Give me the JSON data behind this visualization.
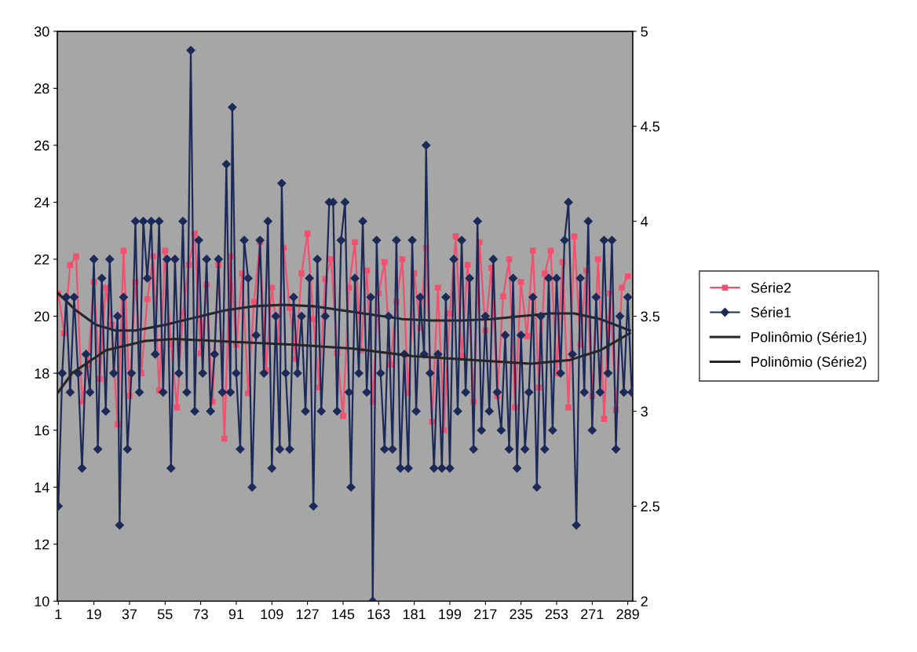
{
  "chart_data": {
    "type": "line",
    "xlim": [
      0.5,
      291.5
    ],
    "xticks": [
      1,
      19,
      37,
      55,
      73,
      91,
      109,
      127,
      145,
      163,
      181,
      199,
      217,
      235,
      253,
      271,
      289
    ],
    "ylim": [
      10,
      30
    ],
    "yticks": [
      10,
      12,
      14,
      16,
      18,
      20,
      22,
      24,
      26,
      28,
      30
    ],
    "y2lim": [
      2,
      5
    ],
    "y2ticks": [
      2,
      2.5,
      3,
      3.5,
      4,
      4.5,
      5
    ],
    "legend": "right",
    "series": [
      {
        "name": "Série2",
        "color": "#f2506e",
        "marker": "square",
        "x": [
          1,
          4,
          7,
          10,
          13,
          16,
          19,
          22,
          25,
          28,
          31,
          34,
          37,
          40,
          43,
          46,
          49,
          52,
          55,
          58,
          61,
          64,
          67,
          70,
          73,
          76,
          79,
          82,
          85,
          88,
          91,
          94,
          97,
          100,
          103,
          106,
          109,
          112,
          115,
          118,
          121,
          124,
          127,
          130,
          133,
          136,
          139,
          142,
          145,
          148,
          151,
          154,
          157,
          160,
          163,
          166,
          169,
          172,
          175,
          178,
          181,
          184,
          187,
          190,
          193,
          196,
          199,
          202,
          205,
          208,
          211,
          214,
          217,
          220,
          223,
          226,
          229,
          232,
          235,
          238,
          241,
          244,
          247,
          250,
          253,
          256,
          259,
          262,
          265,
          268,
          271,
          274,
          277,
          280,
          283,
          286,
          289
        ],
        "values": [
          20.8,
          19.4,
          21.8,
          22.1,
          17.0,
          18.3,
          21.2,
          17.8,
          21.0,
          19.7,
          16.2,
          22.3,
          17.2,
          21.2,
          18.0,
          20.6,
          22.1,
          17.4,
          22.3,
          19.0,
          16.8,
          20.1,
          21.8,
          22.9,
          18.7,
          21.1,
          17.0,
          21.8,
          15.7,
          22.1,
          19.0,
          21.5,
          17.3,
          20.5,
          22.6,
          18.1,
          21.0,
          19.2,
          22.4,
          20.3,
          18.5,
          21.5,
          22.9,
          19.9,
          17.5,
          21.3,
          22.0,
          18.7,
          16.5,
          21.0,
          22.6,
          18.8,
          21.6,
          17.0,
          20.8,
          21.9,
          18.3,
          20.5,
          22.0,
          17.3,
          21.5,
          19.6,
          22.4,
          16.3,
          21.0,
          16.0,
          20.1,
          22.8,
          18.6,
          21.8,
          17.0,
          22.6,
          19.5,
          21.7,
          17.2,
          20.7,
          22.0,
          16.8,
          21.2,
          19.3,
          22.3,
          17.5,
          21.5,
          22.3,
          18.0,
          21.9,
          16.8,
          22.8,
          19.0,
          21.6,
          17.2,
          22.0,
          16.4,
          20.8,
          16.7,
          21.0,
          21.4
        ]
      },
      {
        "name": "Série1",
        "color": "#1c2a5a",
        "marker": "diamond",
        "axis": "y2",
        "x": [
          1,
          3,
          5,
          7,
          9,
          11,
          13,
          15,
          17,
          19,
          21,
          23,
          25,
          27,
          29,
          31,
          32,
          34,
          36,
          38,
          40,
          42,
          44,
          46,
          48,
          50,
          52,
          54,
          56,
          58,
          60,
          62,
          64,
          66,
          68,
          70,
          72,
          74,
          76,
          78,
          80,
          82,
          84,
          86,
          88,
          89,
          91,
          93,
          95,
          97,
          99,
          101,
          103,
          105,
          107,
          109,
          111,
          113,
          114,
          116,
          118,
          120,
          122,
          124,
          126,
          128,
          130,
          132,
          134,
          136,
          138,
          140,
          142,
          144,
          146,
          148,
          149,
          151,
          153,
          155,
          157,
          159,
          160,
          162,
          164,
          166,
          168,
          170,
          172,
          174,
          176,
          178,
          180,
          182,
          184,
          186,
          187,
          189,
          191,
          193,
          195,
          197,
          199,
          201,
          203,
          205,
          207,
          209,
          211,
          213,
          215,
          217,
          219,
          221,
          223,
          225,
          227,
          229,
          231,
          233,
          235,
          237,
          239,
          241,
          243,
          245,
          247,
          249,
          251,
          253,
          255,
          257,
          259,
          261,
          263,
          265,
          267,
          269,
          271,
          273,
          275,
          277,
          279,
          281,
          283,
          285,
          287,
          289,
          291
        ],
        "values": [
          2.5,
          3.2,
          3.6,
          3.1,
          3.6,
          3.2,
          2.7,
          3.3,
          3.1,
          3.8,
          2.8,
          3.7,
          3.0,
          3.8,
          3.2,
          3.5,
          2.4,
          3.6,
          2.8,
          3.2,
          4.0,
          3.1,
          4.0,
          3.7,
          4.0,
          3.3,
          4.0,
          3.1,
          3.8,
          2.7,
          3.8,
          3.2,
          4.0,
          3.1,
          4.9,
          3.0,
          3.9,
          3.2,
          3.8,
          3.0,
          3.3,
          3.8,
          3.1,
          4.3,
          3.1,
          4.6,
          3.2,
          2.8,
          3.9,
          3.7,
          2.6,
          3.4,
          3.9,
          3.2,
          4.0,
          2.7,
          3.5,
          2.8,
          4.2,
          3.2,
          2.8,
          3.6,
          3.2,
          3.5,
          3.0,
          3.7,
          2.5,
          3.8,
          3.0,
          3.5,
          4.1,
          4.1,
          3.0,
          3.9,
          4.1,
          3.1,
          2.6,
          3.7,
          3.2,
          4.0,
          3.1,
          3.6,
          2.0,
          3.9,
          3.2,
          2.8,
          3.5,
          2.8,
          3.9,
          2.7,
          3.3,
          2.7,
          3.9,
          3.0,
          3.6,
          3.3,
          4.4,
          3.2,
          2.7,
          3.3,
          2.7,
          3.6,
          2.7,
          3.8,
          3.0,
          3.9,
          3.1,
          3.7,
          2.8,
          4.0,
          2.9,
          3.5,
          3.0,
          3.8,
          3.1,
          2.9,
          3.4,
          2.8,
          3.7,
          2.7,
          3.4,
          2.8,
          3.1,
          3.6,
          2.6,
          3.5,
          2.8,
          3.7,
          2.9,
          3.7,
          3.2,
          3.9,
          4.1,
          3.3,
          2.4,
          3.7,
          3.1,
          4.0,
          2.9,
          3.6,
          3.1,
          3.9,
          3.2,
          3.9,
          2.8,
          3.5,
          3.1,
          3.6,
          3.1
        ]
      },
      {
        "name": "Polinômio (Série1)",
        "color": "#262626",
        "marker": "none",
        "axis": "y2",
        "x": [
          1,
          8,
          25,
          45,
          60,
          90,
          120,
          150,
          180,
          210,
          240,
          260,
          275,
          290
        ],
        "values": [
          3.1,
          3.2,
          3.32,
          3.37,
          3.38,
          3.365,
          3.35,
          3.33,
          3.29,
          3.27,
          3.25,
          3.27,
          3.32,
          3.41
        ]
      },
      {
        "name": "Polinômio (Série2)",
        "color": "#262626",
        "marker": "none",
        "x": [
          1,
          10,
          20,
          30,
          40,
          55,
          70,
          85,
          100,
          115,
          130,
          145,
          160,
          175,
          190,
          205,
          220,
          235,
          250,
          262,
          275,
          290
        ],
        "values": [
          20.8,
          20.2,
          19.7,
          19.5,
          19.5,
          19.7,
          19.95,
          20.2,
          20.35,
          20.4,
          20.35,
          20.2,
          20.05,
          19.9,
          19.85,
          19.85,
          19.9,
          20.0,
          20.1,
          20.1,
          19.9,
          19.5
        ]
      }
    ]
  }
}
